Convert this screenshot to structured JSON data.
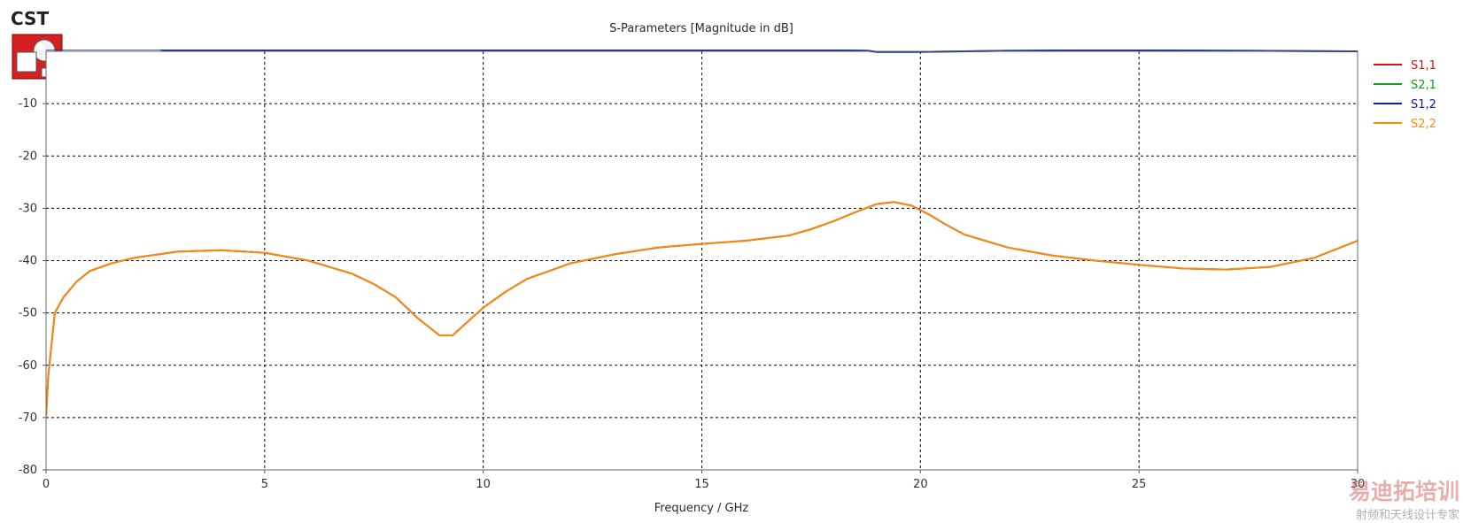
{
  "logo": {
    "text": "CST"
  },
  "watermark": {
    "main": "易迪拓培训",
    "sub": "射频和天线设计专家"
  },
  "chart_data": {
    "type": "line",
    "title": "S-Parameters [Magnitude in dB]",
    "xlabel": "Frequency / GHz",
    "ylabel": "",
    "xlim": [
      0,
      30
    ],
    "ylim": [
      -80,
      0
    ],
    "xticks": [
      0,
      5,
      10,
      15,
      20,
      25,
      30
    ],
    "yticks": [
      -10,
      -20,
      -30,
      -40,
      -50,
      -60,
      -70,
      -80
    ],
    "grid": true,
    "legend_position": "right",
    "series": [
      {
        "name": "S1,1",
        "color": "#e01010",
        "x": [
          0,
          0.05,
          0.2,
          0.4,
          0.7,
          1,
          1.5,
          2,
          3,
          4,
          5,
          6,
          7,
          7.5,
          8,
          8.5,
          9,
          9.3,
          9.6,
          10,
          10.5,
          11,
          12,
          13,
          14,
          15,
          16,
          17,
          17.5,
          18,
          18.5,
          19,
          19.4,
          19.8,
          20.2,
          20.6,
          21,
          22,
          23,
          24,
          25,
          26,
          27,
          28,
          29,
          30
        ],
        "y": [
          -70,
          -62,
          -50,
          -47,
          -44,
          -42,
          -40.5,
          -39.5,
          -38.3,
          -38,
          -38.5,
          -40,
          -42.5,
          -44.5,
          -47,
          -51,
          -54.3,
          -54.3,
          -52,
          -49,
          -46,
          -43.5,
          -40.5,
          -38.8,
          -37.5,
          -36.8,
          -36.2,
          -35.2,
          -34,
          -32.5,
          -30.8,
          -29.2,
          -28.8,
          -29.5,
          -31.2,
          -33.2,
          -35,
          -37.5,
          -39,
          -40,
          -40.8,
          -41.5,
          -41.7,
          -41.2,
          -39.5,
          -36.2
        ]
      },
      {
        "name": "S2,1",
        "color": "#10a020",
        "x": [
          0,
          2.6,
          2.7,
          18,
          18.8,
          19,
          20,
          21,
          22,
          24,
          27.5,
          30
        ],
        "y": [
          0.4,
          0.4,
          0.2,
          0.2,
          0.1,
          -0.1,
          -0.1,
          0.0,
          0.1,
          0.2,
          0.1,
          0.0
        ]
      },
      {
        "name": "S1,2",
        "color": "#1020a0",
        "x": [
          0,
          2.6,
          2.7,
          18,
          18.8,
          19,
          20,
          21,
          22,
          24,
          27.5,
          30
        ],
        "y": [
          0.4,
          0.4,
          0.2,
          0.2,
          0.1,
          -0.1,
          -0.1,
          0.0,
          0.1,
          0.2,
          0.1,
          0.0
        ]
      },
      {
        "name": "S2,2",
        "color": "#f08c10",
        "x": [
          0,
          0.05,
          0.2,
          0.4,
          0.7,
          1,
          1.5,
          2,
          3,
          4,
          5,
          6,
          7,
          7.5,
          8,
          8.5,
          9,
          9.3,
          9.6,
          10,
          10.5,
          11,
          12,
          13,
          14,
          15,
          16,
          17,
          17.5,
          18,
          18.5,
          19,
          19.4,
          19.8,
          20.2,
          20.6,
          21,
          22,
          23,
          24,
          25,
          26,
          27,
          28,
          29,
          30
        ],
        "y": [
          -70,
          -62,
          -50,
          -47,
          -44,
          -42,
          -40.5,
          -39.5,
          -38.3,
          -38,
          -38.5,
          -40,
          -42.5,
          -44.5,
          -47,
          -51,
          -54.3,
          -54.3,
          -52,
          -49,
          -46,
          -43.5,
          -40.5,
          -38.8,
          -37.5,
          -36.8,
          -36.2,
          -35.2,
          -34,
          -32.5,
          -30.8,
          -29.2,
          -28.8,
          -29.5,
          -31.2,
          -33.2,
          -35,
          -37.5,
          -39,
          -40,
          -40.8,
          -41.5,
          -41.7,
          -41.2,
          -39.5,
          -36.2
        ]
      }
    ]
  }
}
